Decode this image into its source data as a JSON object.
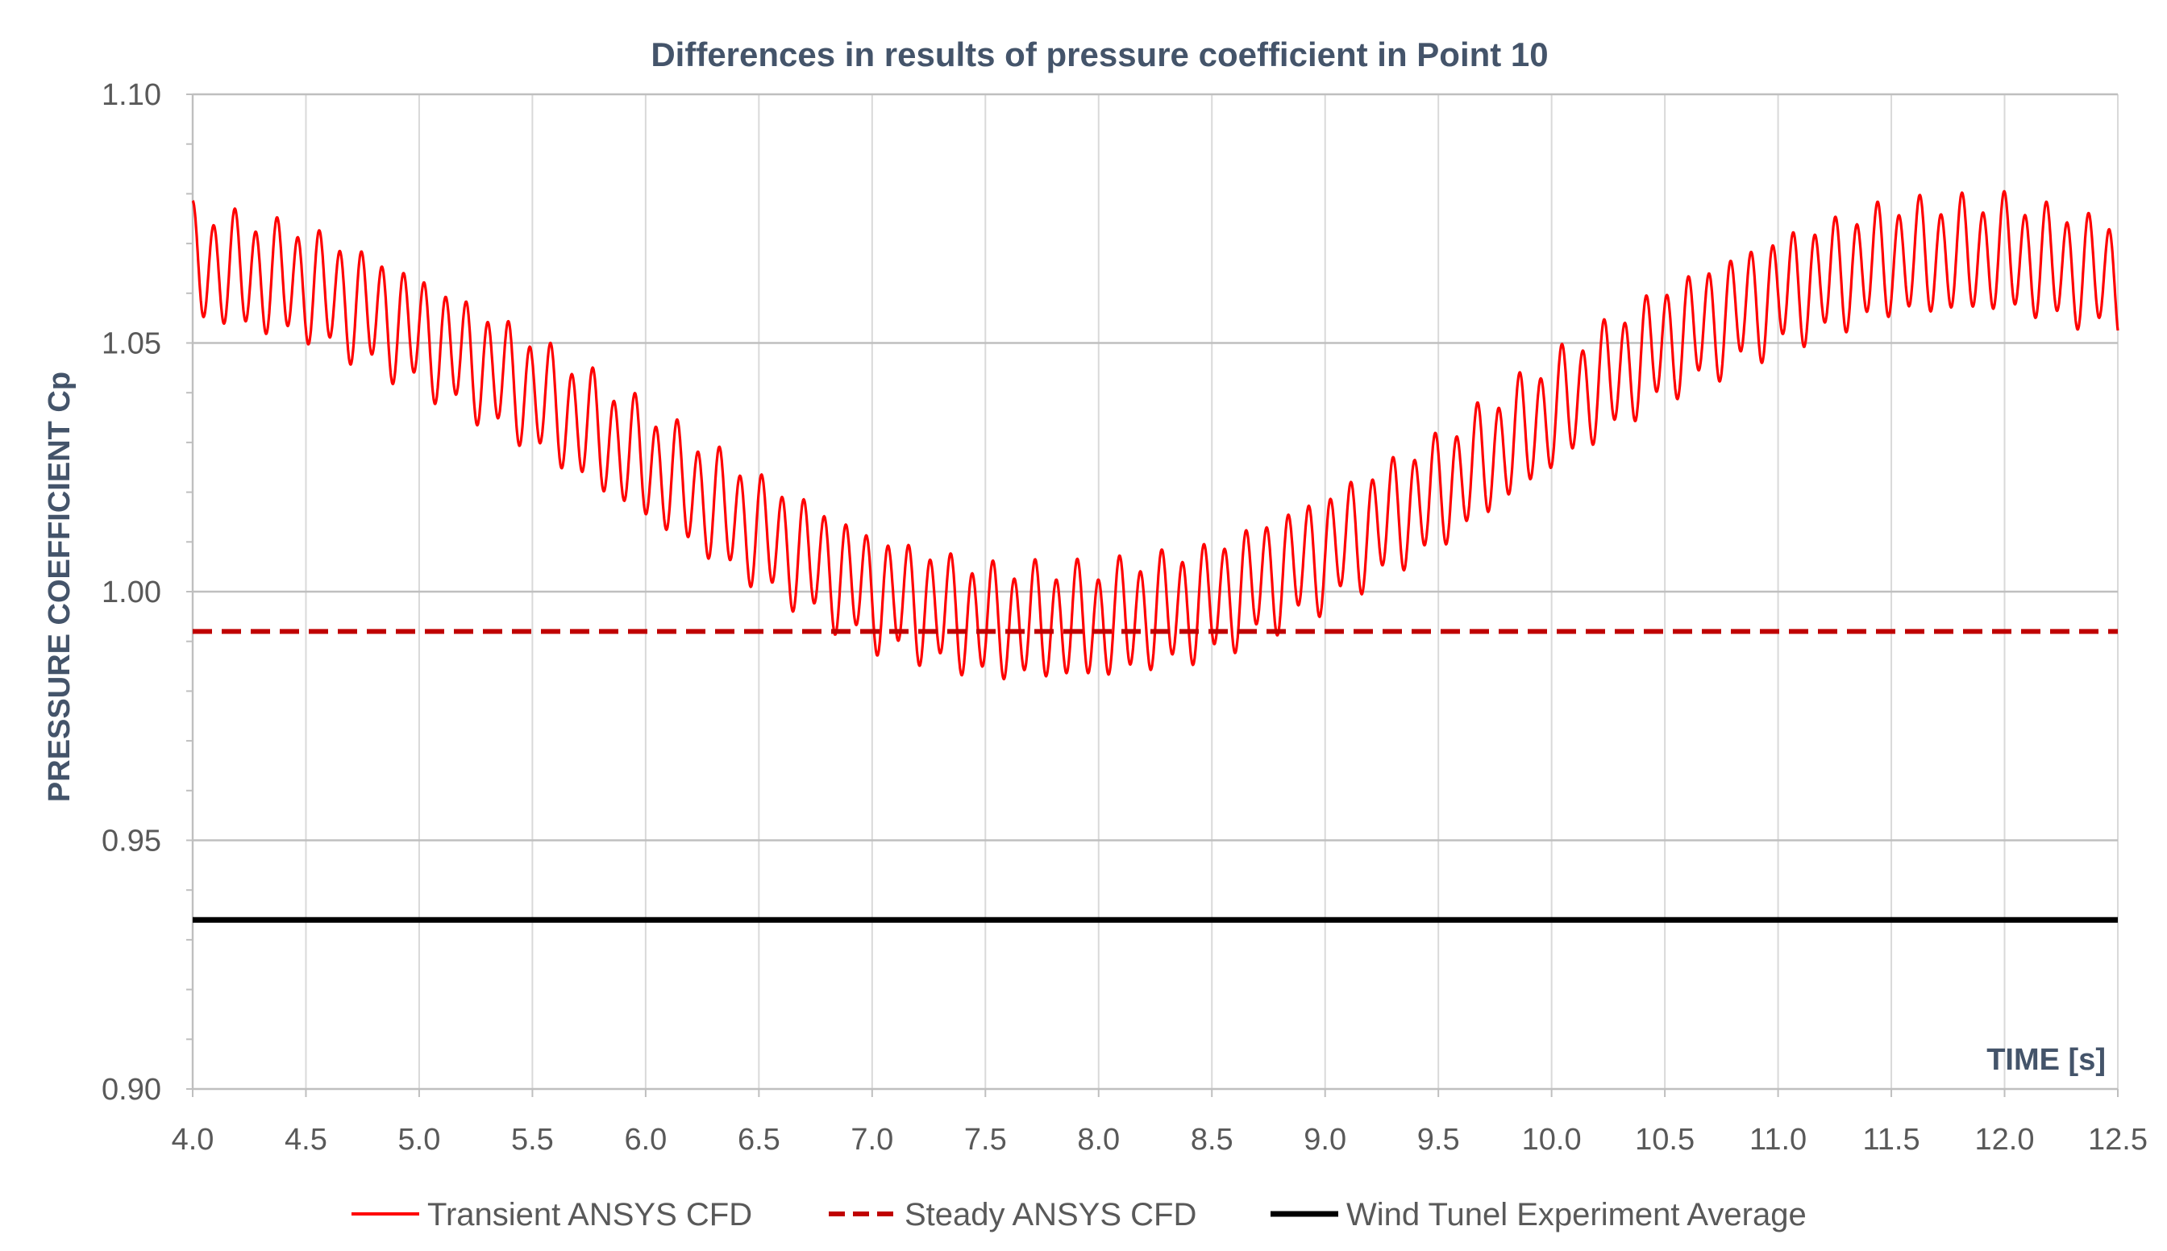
{
  "chart_data": {
    "type": "line",
    "title": "Differences in results of pressure coefficient in Point 10",
    "xlabel": "TIME [s]",
    "ylabel": "PRESSURE COEFFICIENT Cp",
    "xlim": [
      4.0,
      12.5
    ],
    "ylim": [
      0.9,
      1.1
    ],
    "x_ticks": [
      "4.0",
      "4.5",
      "5.0",
      "5.5",
      "6.0",
      "6.5",
      "7.0",
      "7.5",
      "8.0",
      "8.5",
      "9.0",
      "9.5",
      "10.0",
      "10.5",
      "11.0",
      "11.5",
      "12.0",
      "12.5"
    ],
    "y_ticks": [
      "0.90",
      "0.95",
      "1.00",
      "1.05",
      "1.10"
    ],
    "grid": "vertical and horizontal major gridlines",
    "legend_position": "bottom",
    "series": [
      {
        "name": "Transient ANSYS CFD",
        "style": "solid",
        "color": "#ff0000",
        "x_start": 4.0,
        "x_step": 0.02,
        "y_mean_points": [
          [
            4.0,
            1.066
          ],
          [
            4.5,
            1.062
          ],
          [
            5.0,
            1.052
          ],
          [
            5.5,
            1.04
          ],
          [
            6.0,
            1.026
          ],
          [
            6.5,
            1.012
          ],
          [
            7.0,
            1.0
          ],
          [
            7.5,
            0.994
          ],
          [
            8.0,
            0.994
          ],
          [
            8.5,
            0.998
          ],
          [
            9.0,
            1.008
          ],
          [
            9.5,
            1.02
          ],
          [
            10.0,
            1.036
          ],
          [
            10.5,
            1.05
          ],
          [
            11.0,
            1.06
          ],
          [
            11.5,
            1.067
          ],
          [
            12.0,
            1.068
          ],
          [
            12.5,
            1.063
          ]
        ],
        "oscillation_amplitude": 0.0105,
        "oscillation_period_s": 0.093
      },
      {
        "name": "Steady ANSYS CFD",
        "style": "dashed",
        "color": "#c00000",
        "y_value": 0.992
      },
      {
        "name": "Wind Tunel Experiment Average",
        "style": "solid",
        "color": "#000000",
        "y_value": 0.934
      }
    ]
  }
}
